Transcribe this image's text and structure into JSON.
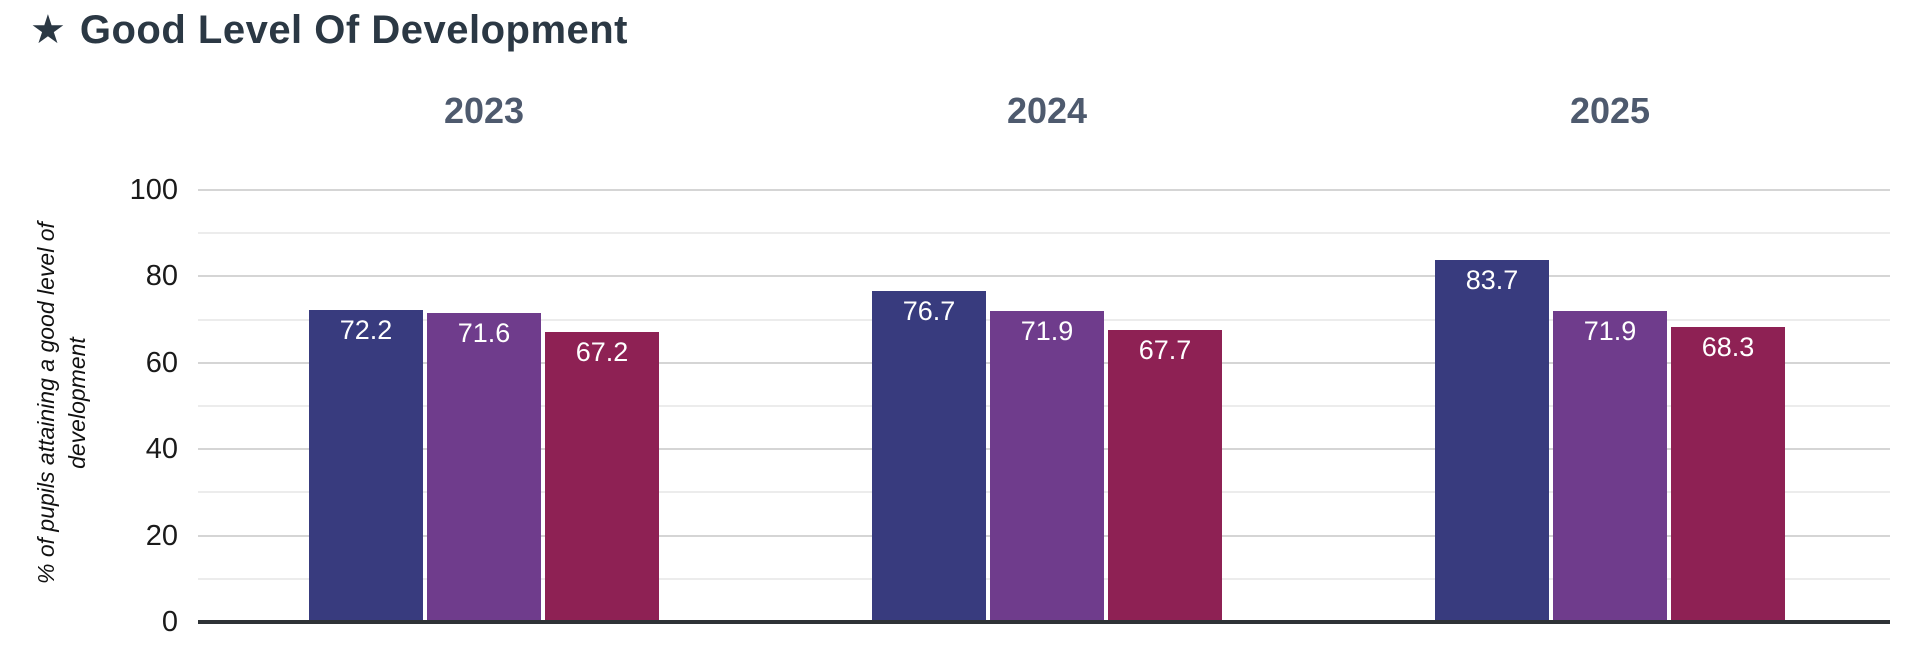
{
  "header": {
    "star_icon": "★",
    "title": "Good Level Of Development",
    "title_color": "#2b3844"
  },
  "chart_data": {
    "type": "bar",
    "title": "Good Level Of Development",
    "categories": [
      "2023",
      "2024",
      "2025"
    ],
    "series": [
      {
        "id": "blue-bar",
        "color": "#383b7e",
        "values": [
          72.2,
          76.7,
          83.7
        ]
      },
      {
        "id": "purple-bar",
        "color": "#6f3c8c",
        "values": [
          71.6,
          71.9,
          71.9
        ]
      },
      {
        "id": "crimson-bar",
        "color": "#8e2154",
        "values": [
          67.2,
          67.7,
          68.3
        ]
      }
    ],
    "bar_value_labels": [
      [
        "72.2",
        "71.6",
        "67.2"
      ],
      [
        "76.7",
        "71.9",
        "67.7"
      ],
      [
        "83.7",
        "71.9",
        "68.3"
      ]
    ],
    "xlabel": "",
    "ylabel": "% of pupils attaining a good level of development",
    "ylabel_lines": [
      "% of pupils attaining a good level of",
      "development"
    ],
    "ylim": [
      0,
      100
    ],
    "yticks": [
      "0",
      "20",
      "40",
      "60",
      "80",
      "100"
    ],
    "minor_grid_step": 10,
    "grid": true,
    "legend_position": "none"
  },
  "style": {
    "year_header_color": "#4e5a6e",
    "grid_major_color": "#d5d5d5",
    "grid_minor_color": "#ececec",
    "axis_line_color": "#2e3236",
    "tick_label_color": "#1a1a1a",
    "value_label_color": "#ffffff",
    "background": "#ffffff"
  }
}
